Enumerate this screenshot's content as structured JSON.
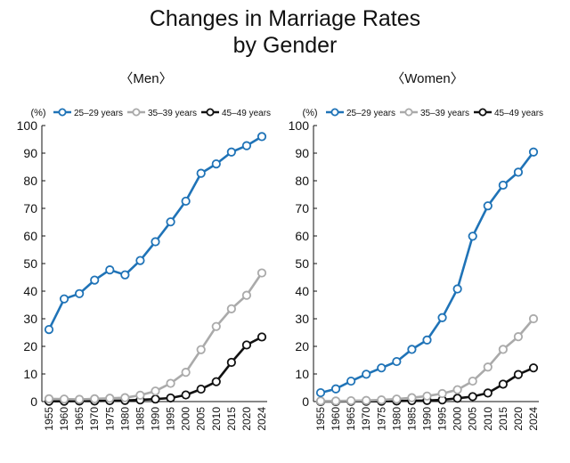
{
  "title_line1": "Changes in Marriage Rates",
  "title_line2": "by Gender",
  "colors": {
    "25-29": "#1f73b7",
    "35-39": "#aaaaaa",
    "45-49": "#111111"
  },
  "chart_data": [
    {
      "type": "line",
      "title": "〈Men〉",
      "ylabel": "(%)",
      "ylim": [
        0,
        100
      ],
      "yticks": [
        0,
        10,
        20,
        30,
        40,
        50,
        60,
        70,
        80,
        90,
        100
      ],
      "x": [
        "1955",
        "1960",
        "1965",
        "1970",
        "1975",
        "1980",
        "1985",
        "1990",
        "1995",
        "2000",
        "2005",
        "2010",
        "2015",
        "2020",
        "2024"
      ],
      "legend_position": "top",
      "grid": false,
      "series": [
        {
          "name": "25–29 years",
          "key": "25-29",
          "values": [
            26.1,
            37.2,
            39.1,
            44.0,
            47.7,
            45.9,
            51.1,
            57.9,
            65.1,
            72.6,
            82.7,
            86.1,
            90.4,
            92.7,
            96.0
          ]
        },
        {
          "name": "35–39 years",
          "key": "35-39",
          "values": [
            1.0,
            0.9,
            0.8,
            1.0,
            1.2,
            1.4,
            2.3,
            3.8,
            6.6,
            10.6,
            18.8,
            27.2,
            33.6,
            38.5,
            46.6
          ]
        },
        {
          "name": "45–49 years",
          "key": "45-49",
          "values": [
            0.1,
            0.1,
            0.2,
            0.2,
            0.3,
            0.4,
            0.6,
            0.9,
            1.3,
            2.4,
            4.5,
            7.2,
            14.2,
            20.5,
            23.4
          ]
        }
      ]
    },
    {
      "type": "line",
      "title": "〈Women〉",
      "ylabel": "(%)",
      "ylim": [
        0,
        100
      ],
      "yticks": [
        0,
        10,
        20,
        30,
        40,
        50,
        60,
        70,
        80,
        90,
        100
      ],
      "x": [
        "1955",
        "1960",
        "1965",
        "1970",
        "1975",
        "1980",
        "1985",
        "1990",
        "1995",
        "2000",
        "2005",
        "2010",
        "2015",
        "2020",
        "2024"
      ],
      "legend_position": "top",
      "grid": false,
      "series": [
        {
          "name": "25–29 years",
          "key": "25-29",
          "values": [
            3.2,
            4.6,
            7.4,
            9.9,
            12.2,
            14.5,
            18.9,
            22.3,
            30.4,
            40.8,
            59.9,
            70.9,
            78.4,
            83.1,
            90.4
          ]
        },
        {
          "name": "35–39 years",
          "key": "35-39",
          "values": [
            0.2,
            0.2,
            0.3,
            0.4,
            0.6,
            0.9,
            1.4,
            2.0,
            2.9,
            4.3,
            7.4,
            12.5,
            18.9,
            23.5,
            30.0
          ]
        },
        {
          "name": "45–49 years",
          "key": "45-49",
          "values": [
            0.0,
            0.0,
            0.1,
            0.1,
            0.1,
            0.2,
            0.3,
            0.4,
            0.6,
            1.2,
            1.8,
            3.1,
            6.3,
            9.8,
            12.2
          ]
        }
      ]
    }
  ]
}
